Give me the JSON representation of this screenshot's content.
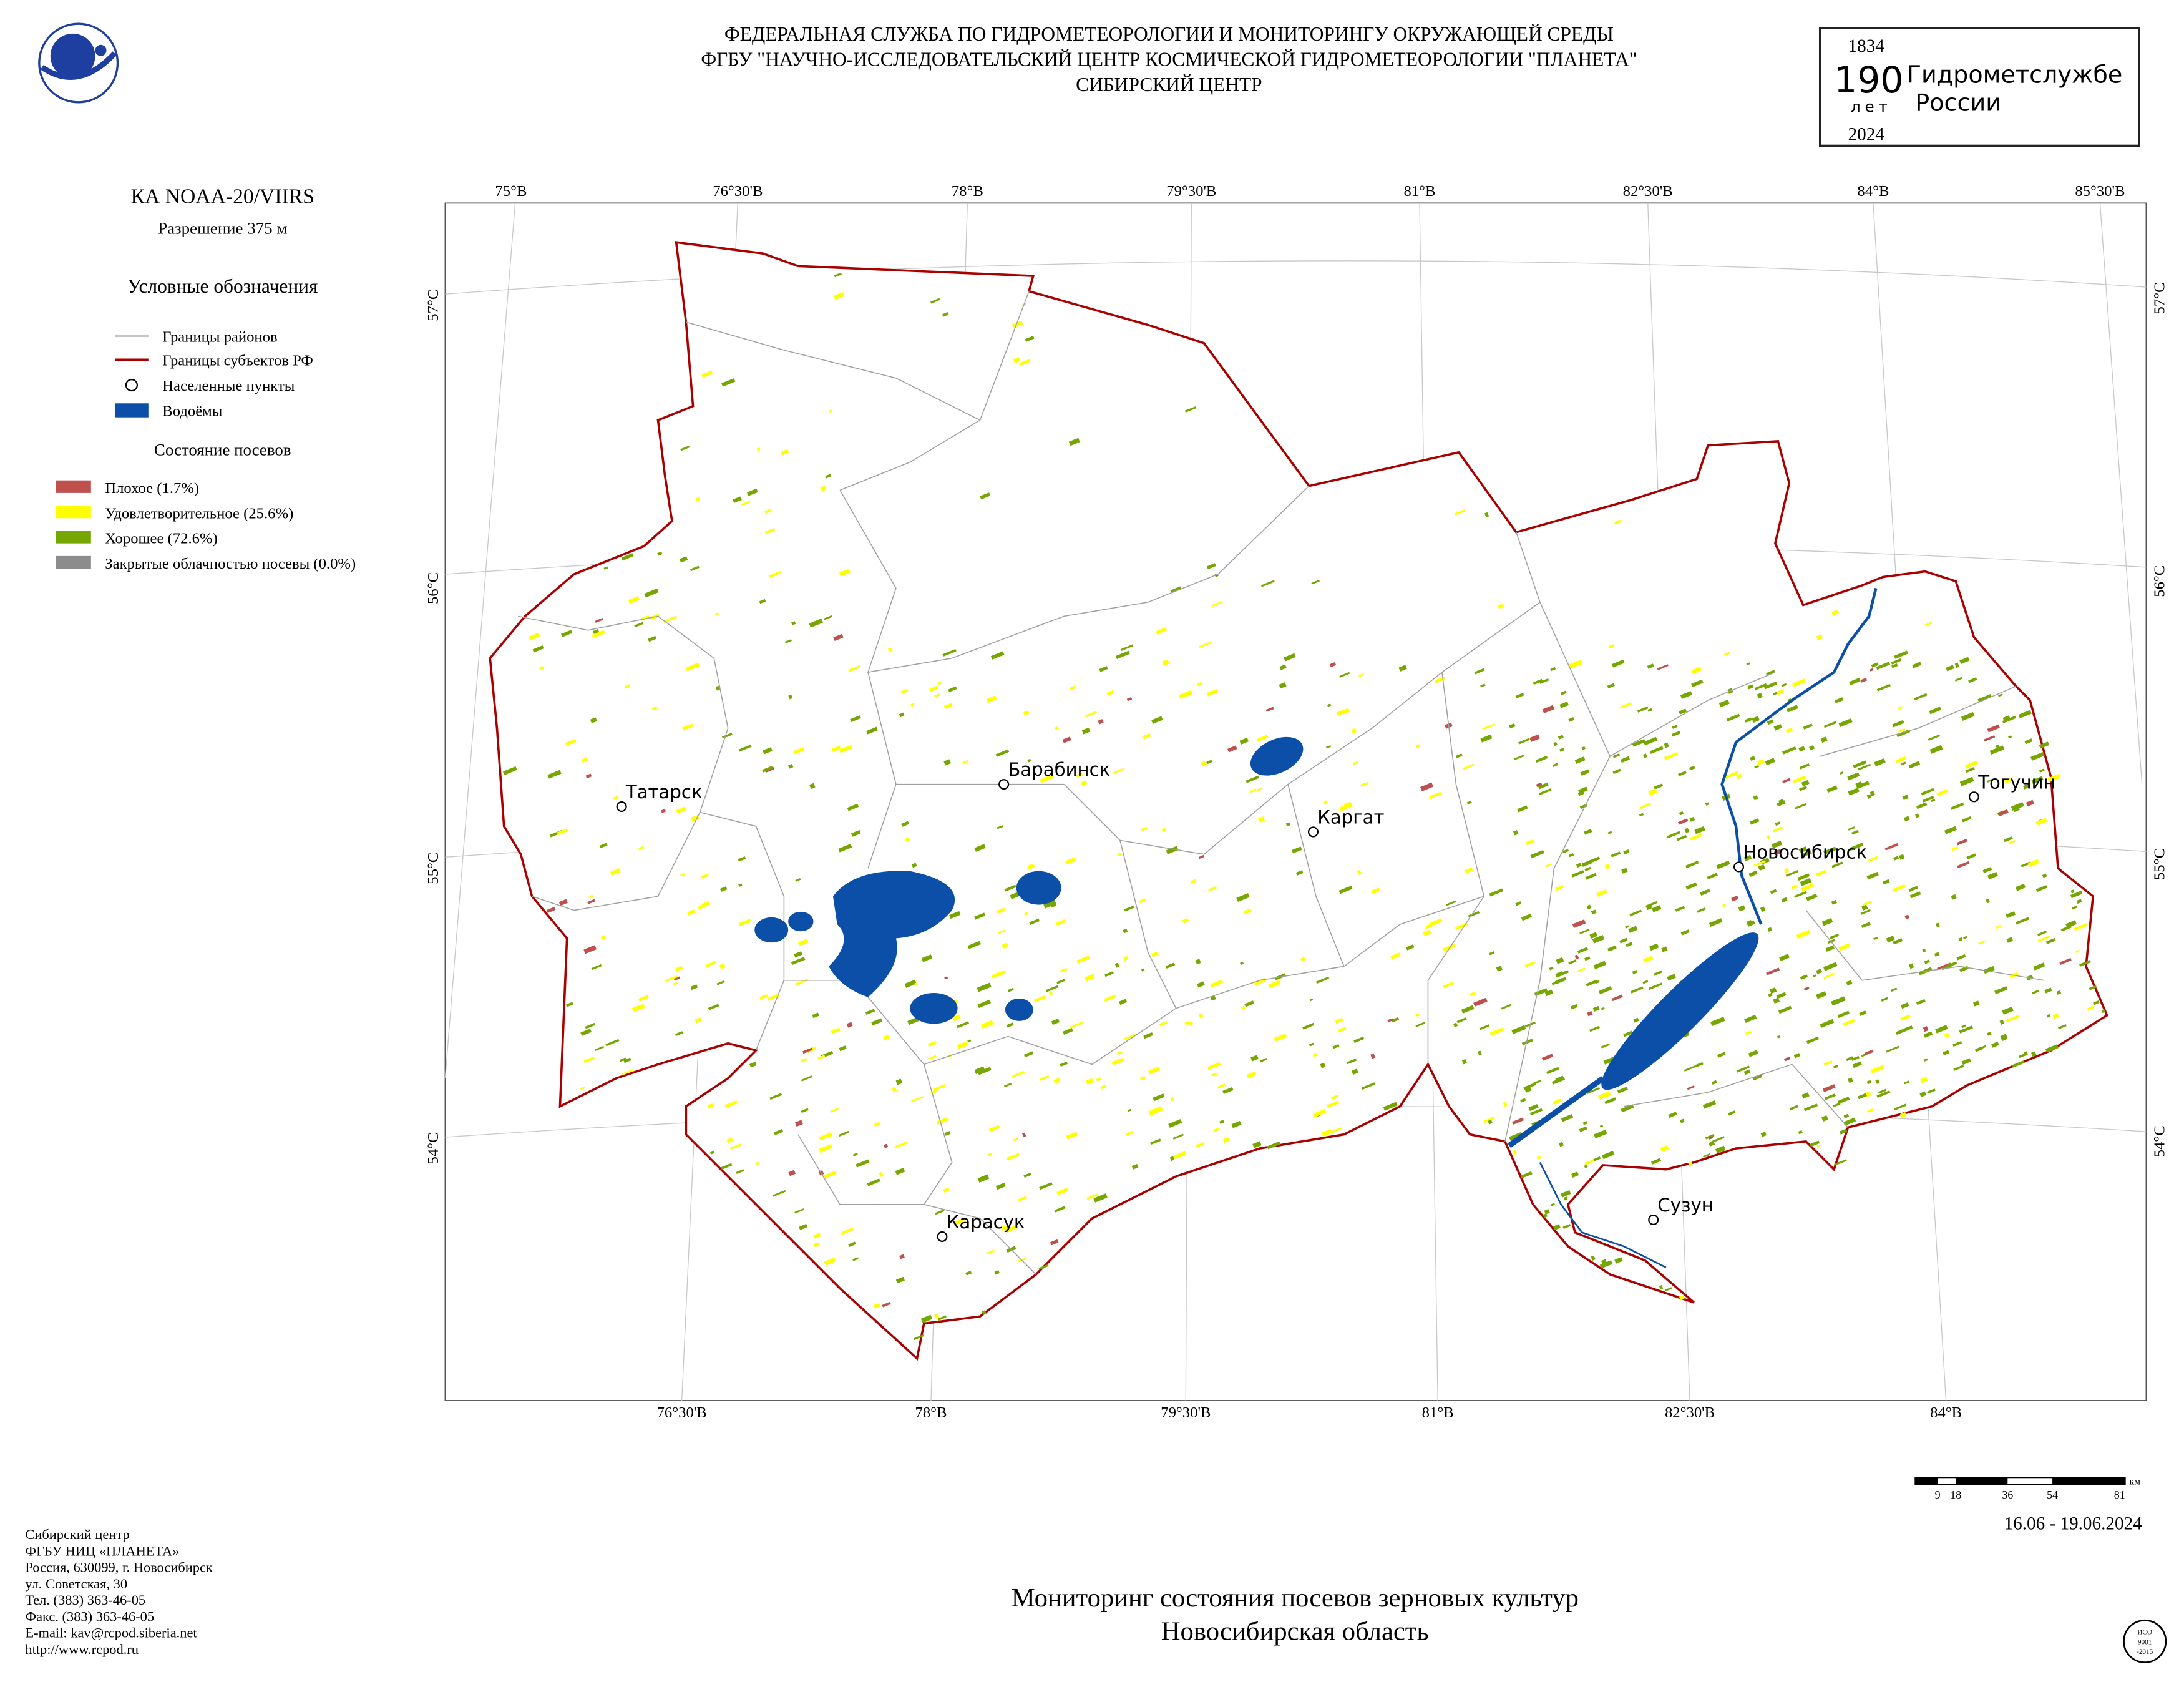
{
  "header": {
    "lines": [
      "ФЕДЕРАЛЬНАЯ СЛУЖБА ПО ГИДРОМЕТЕОРОЛОГИИ И МОНИТОРИНГУ ОКРУЖАЮЩЕЙ СРЕДЫ",
      "ФГБУ \"НАУЧНО-ИССЛЕДОВАТЕЛЬСКИЙ ЦЕНТР КОСМИЧЕСКОЙ ГИДРОМЕТЕОРОЛОГИИ \"ПЛАНЕТА\"",
      "СИБИРСКИЙ ЦЕНТР"
    ]
  },
  "logo": {
    "year_start": "1834",
    "number": "190",
    "years_word": "лет",
    "line1": "Гидрометслужбе",
    "line2": "России",
    "year_end": "2024"
  },
  "panel": {
    "satellite": "КА NOAA-20/VIIRS",
    "resolution": "Разрешение 375 м",
    "legend_title": "Условные обозначения",
    "legend": [
      "Границы районов",
      "Границы субъектов РФ",
      "Населенные пункты",
      "Водоёмы"
    ],
    "crop_title": "Состояние посевов",
    "crop_legend": [
      "Плохое (1.7%)",
      "Удовлетворительное (25.6%)",
      "Хорошее (72.6%)",
      "Закрытые облачностью посевы (0.0%)"
    ]
  },
  "graticule": {
    "top": [
      "75°В",
      "76°30'В",
      "78°В",
      "79°30'В",
      "81°В",
      "82°30'В",
      "84°В",
      "85°30'В"
    ],
    "bottom": [
      "76°30'В",
      "78°В",
      "79°30'В",
      "81°В",
      "82°30'В",
      "84°В"
    ],
    "left": [
      "57°С",
      "56°С",
      "55°С",
      "54°С"
    ],
    "right": [
      "57°С",
      "56°С",
      "55°С",
      "54°С"
    ]
  },
  "cities": [
    "Татарск",
    "Барабинск",
    "Каргат",
    "Новосибирск",
    "Тогучин",
    "Карасук",
    "Сузун"
  ],
  "scale": {
    "labels": [
      "9",
      "18",
      "36",
      "54",
      "81"
    ],
    "unit": "км"
  },
  "date": "16.06 - 19.06.2024",
  "footer": [
    "Сибирский центр",
    "ФГБУ НИЦ «ПЛАНЕТА»",
    "Россия, 630099, г. Новосибирск",
    "ул. Советская, 30",
    "Тел. (383) 363-46-05",
    "Факс. (383) 363-46-05",
    "E-mail: kav@rcpod.siberia.net",
    "http://www.rcpod.ru"
  ],
  "title": [
    "Мониторинг состояния посевов зерновых культур",
    "Новосибирская область"
  ],
  "iso": [
    "ИСО",
    "9001",
    "-2015"
  ]
}
